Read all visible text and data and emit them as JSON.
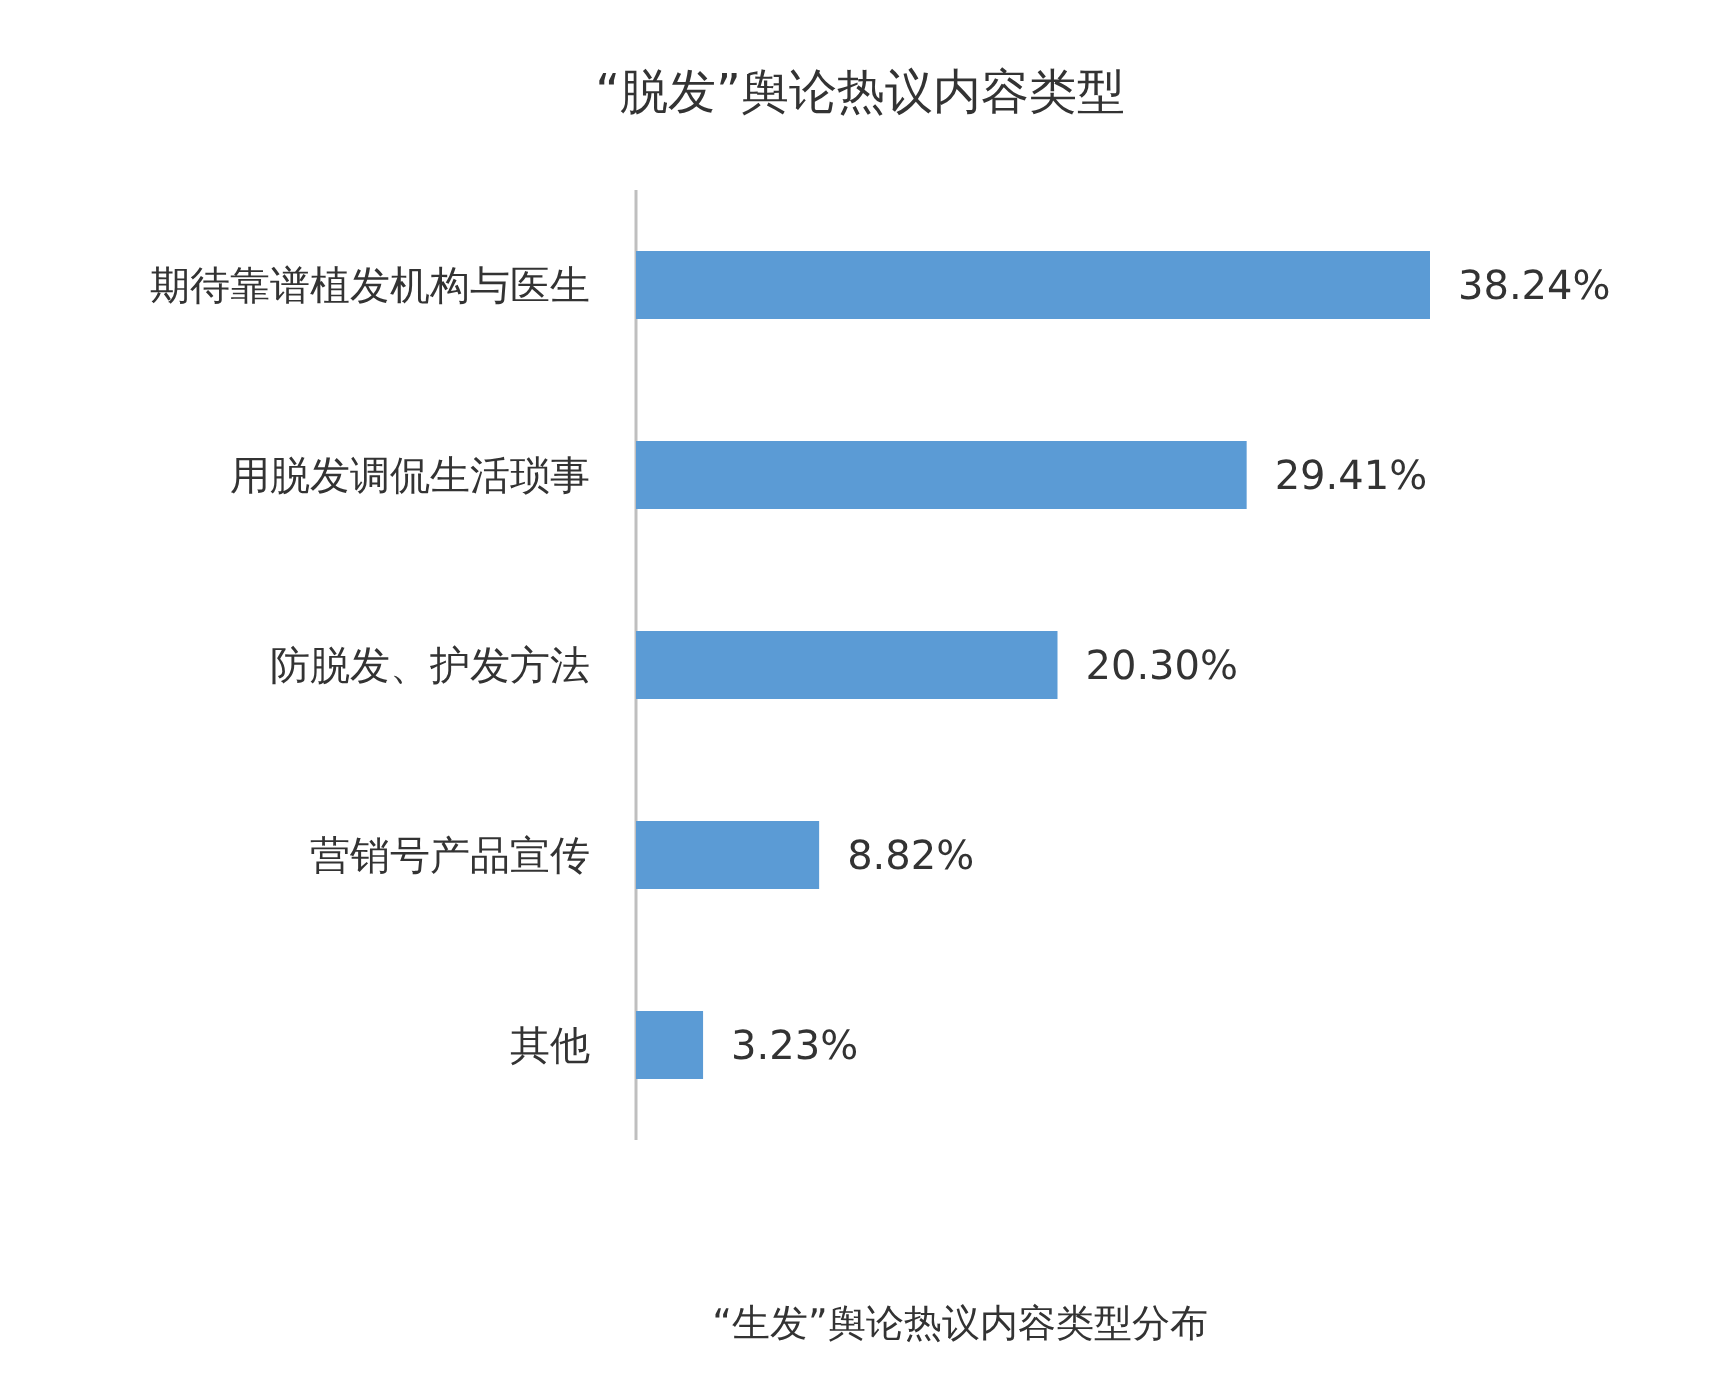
{
  "chart_data": {
    "type": "bar",
    "orientation": "horizontal",
    "title": "“脱发”舆论热议内容类型",
    "categories": [
      "期待靠谱植发机构与医生",
      "用脱发调侃生活琐事",
      "防脱发、护发方法",
      "营销号产品宣传",
      "其他"
    ],
    "values": [
      38.24,
      29.41,
      20.3,
      8.82,
      3.23
    ],
    "value_labels": [
      "38.24%",
      "29.41%",
      "20.30%",
      "8.82%",
      "3.23%"
    ],
    "color": "#5b9bd5",
    "annotations": [
      "“生发”舆论热议内容类型分布"
    ]
  }
}
